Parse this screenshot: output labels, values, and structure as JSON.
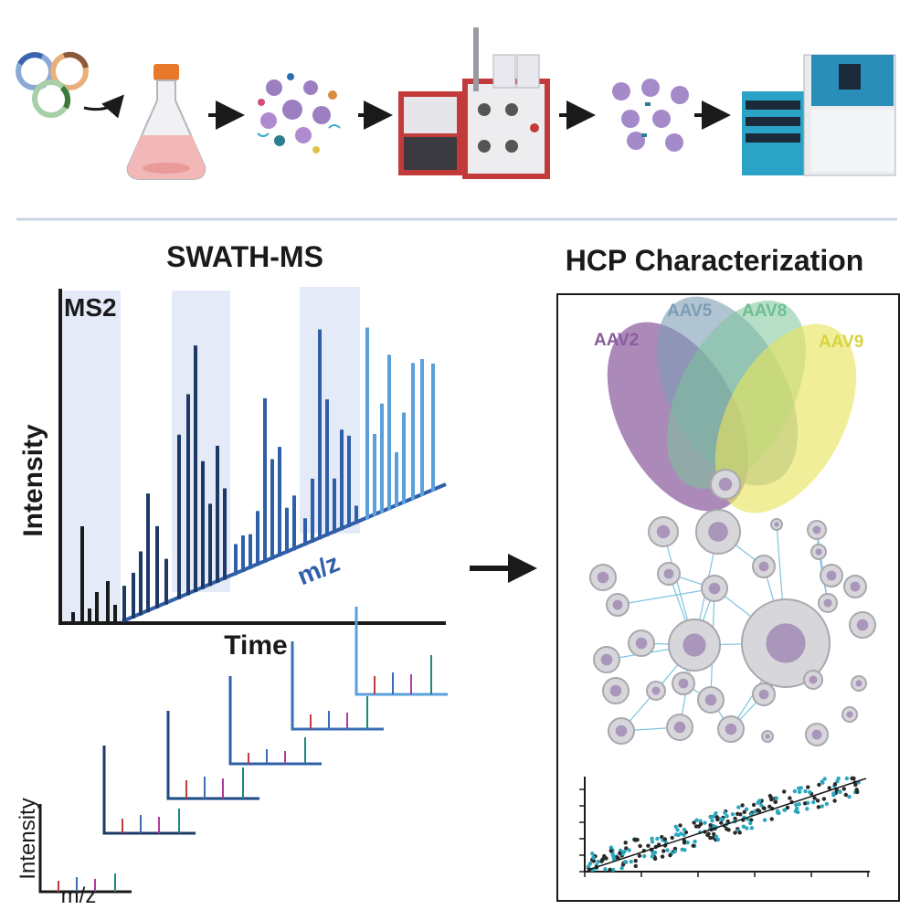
{
  "workflow": {
    "steps": [
      "plasmid-transfection",
      "cell-culture-flask",
      "cell-lysate",
      "purification-system",
      "purified-aav-capsids",
      "lc-ms-instrument"
    ]
  },
  "swath": {
    "title": "SWATH-MS",
    "window_label": "MS2",
    "y_label": "Intensity",
    "x_label": "Time",
    "diag_label": "m/z"
  },
  "mini_spectrum": {
    "y_label": "Intensity",
    "x_label": "m/z"
  },
  "hcp": {
    "title": "HCP Characterization",
    "venn": [
      {
        "label": "AAV2",
        "color": "#8a5c9e"
      },
      {
        "label": "AAV5",
        "color": "#7d9db4"
      },
      {
        "label": "AAV8",
        "color": "#7cc49a"
      },
      {
        "label": "AAV9",
        "color": "#e0dc5a"
      }
    ]
  },
  "colors": {
    "navy": "#1d3a66",
    "mid_blue": "#3a6fb8",
    "light_blue": "#5aa0dc",
    "band": "#e4eaf8",
    "teal": "#2aa7be",
    "arrow": "#1a1a1a"
  }
}
